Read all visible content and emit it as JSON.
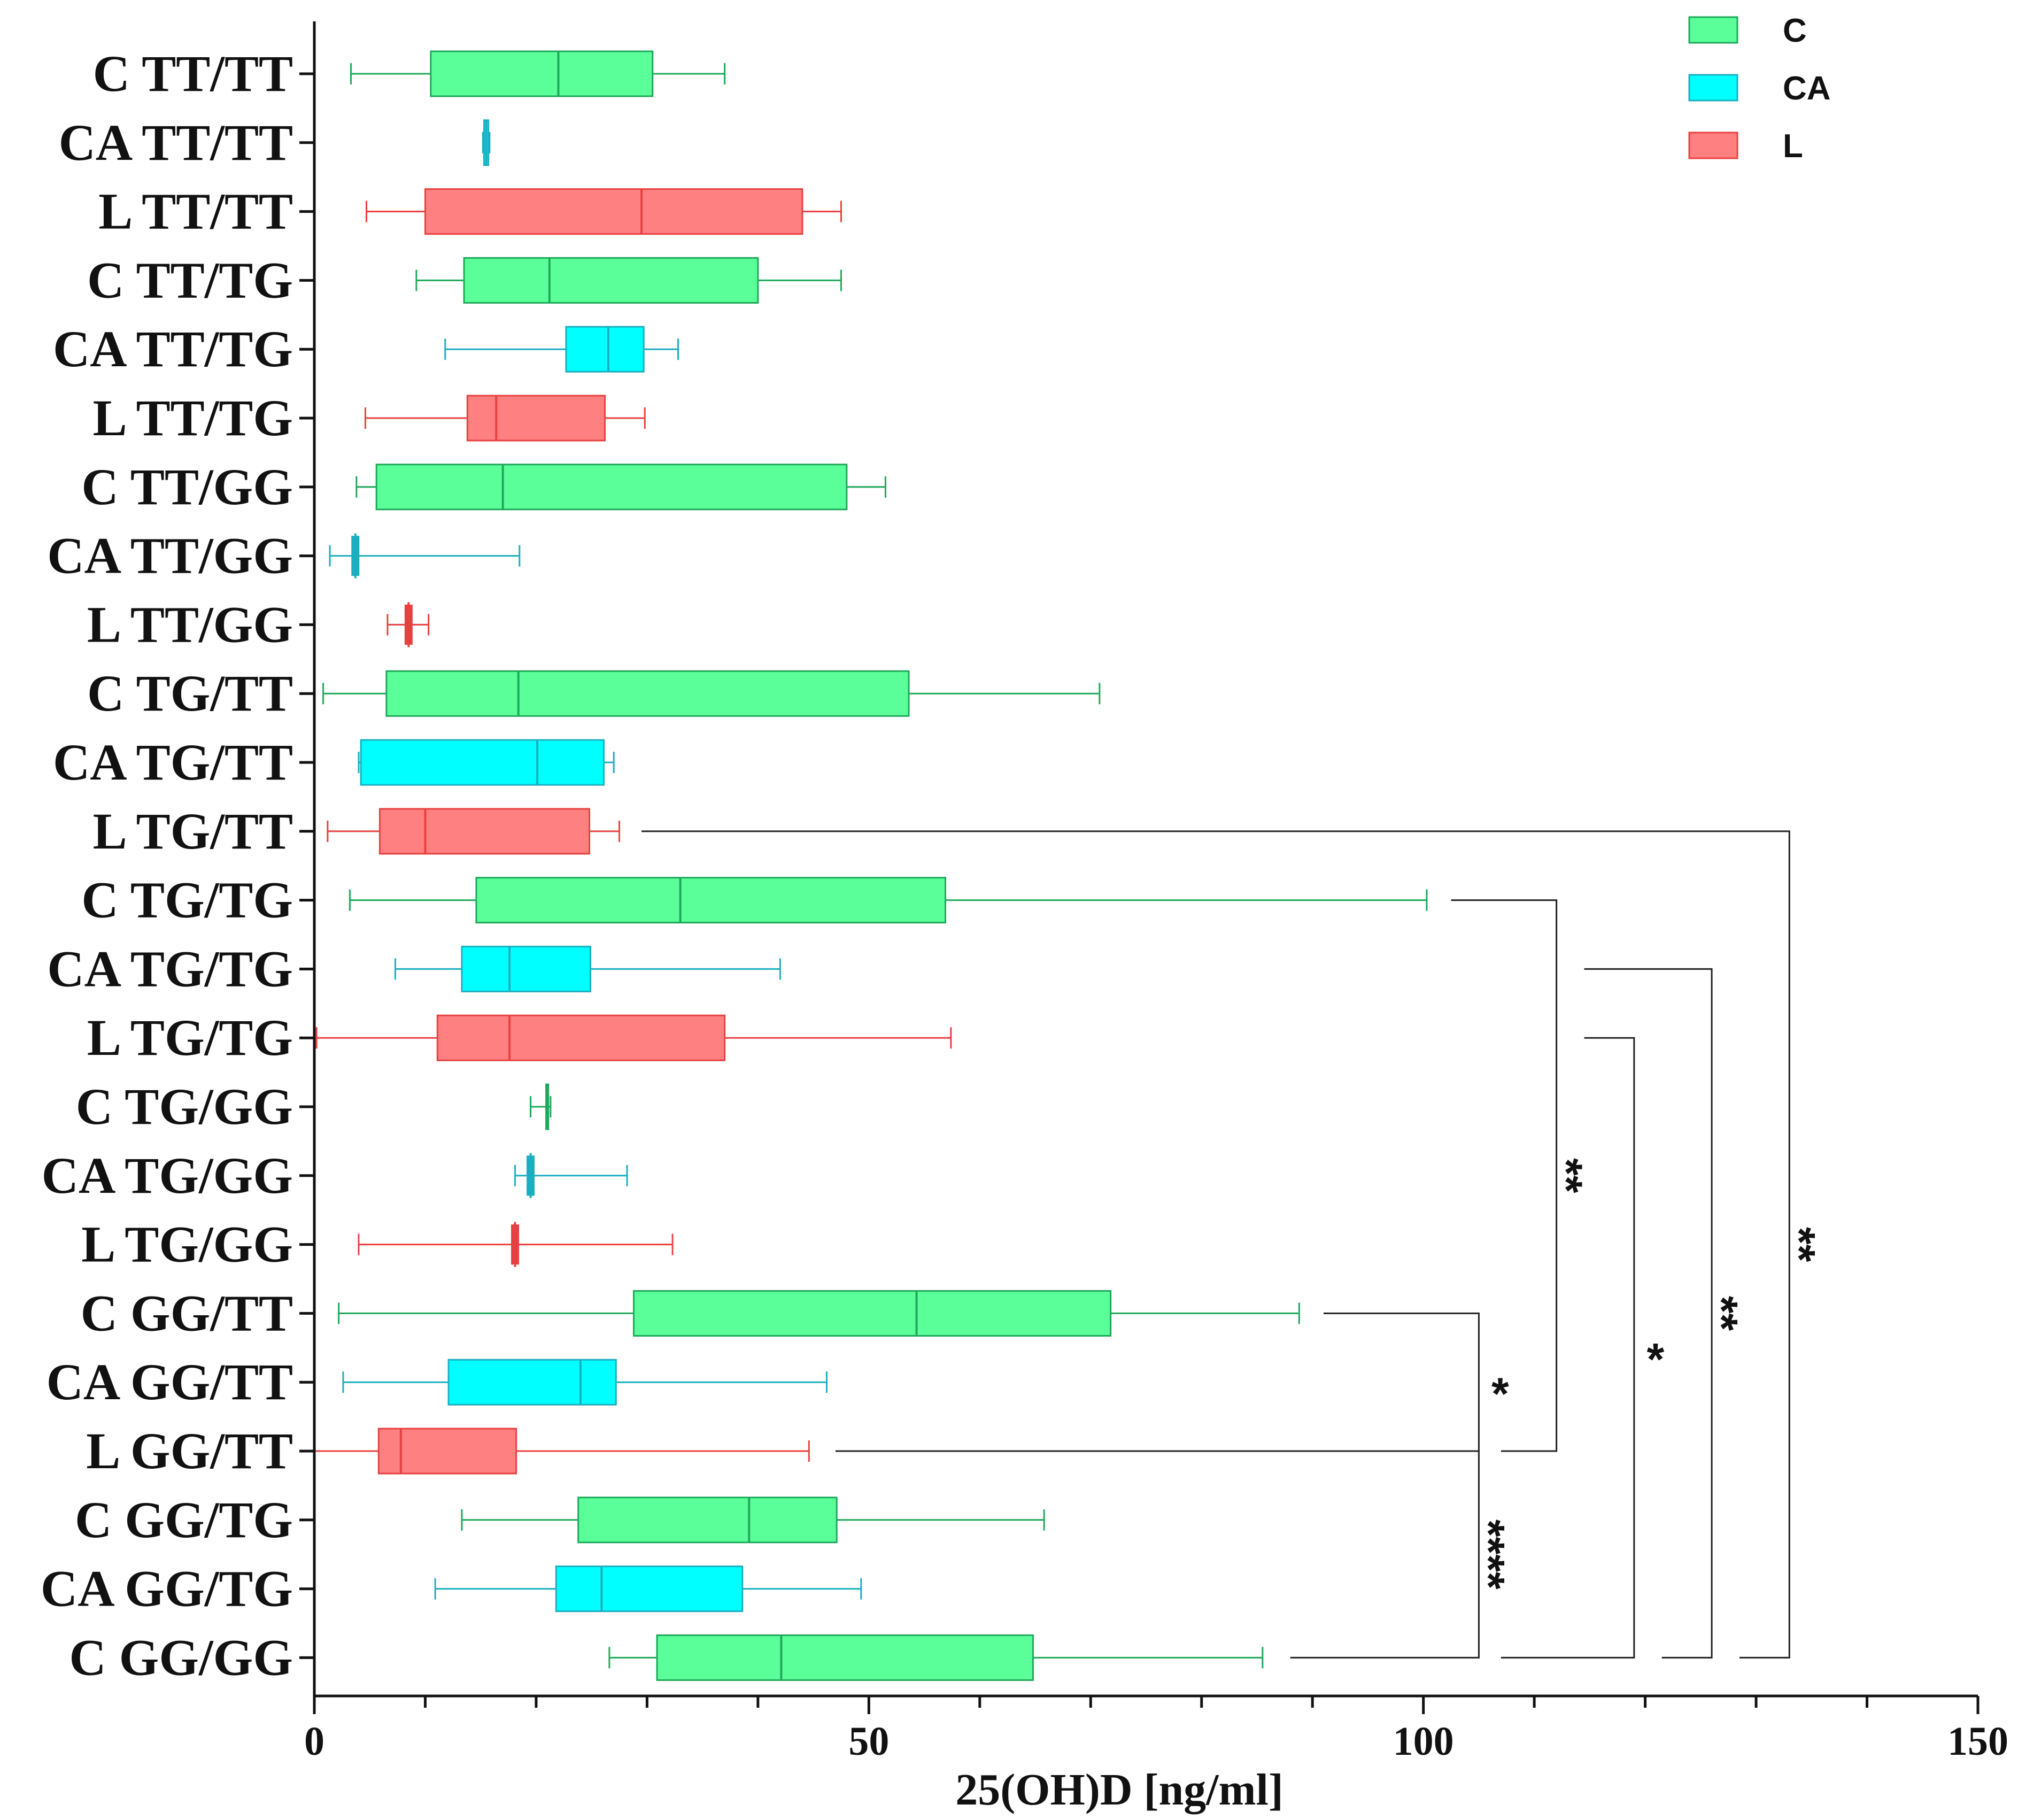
{
  "chart_data": {
    "type": "boxplot-horizontal",
    "xlabel": "25(OH)D [ng/ml]",
    "xlim": [
      0,
      150
    ],
    "xticks": [
      0,
      50,
      100,
      150
    ],
    "xtick_labels": [
      "0",
      "50",
      "100",
      "150"
    ],
    "minor_tick_step": 10,
    "legend": [
      {
        "key": "C",
        "label": "C",
        "fill": "#5BFF99",
        "stroke": "#1EA85A"
      },
      {
        "key": "CA",
        "label": "CA",
        "fill": "#00FFFF",
        "stroke": "#1AAFC0"
      },
      {
        "key": "L",
        "label": "L",
        "fill": "#FF8080",
        "stroke": "#E84040"
      }
    ],
    "groups": [
      {
        "label": "C TT/TT",
        "group": "C",
        "whisker_low": 3.3,
        "q1": 10.5,
        "median": 22.0,
        "q3": 30.5,
        "whisker_high": 37.0
      },
      {
        "label": "CA TT/TT",
        "group": "CA",
        "whisker_low": 15.2,
        "q1": 15.3,
        "median": 15.5,
        "q3": 15.7,
        "whisker_high": 15.8
      },
      {
        "label": "L TT/TT",
        "group": "L",
        "whisker_low": 4.7,
        "q1": 10.0,
        "median": 29.5,
        "q3": 44.0,
        "whisker_high": 47.5
      },
      {
        "label": "C TT/TG",
        "group": "C",
        "whisker_low": 9.2,
        "q1": 13.5,
        "median": 21.2,
        "q3": 40.0,
        "whisker_high": 47.5
      },
      {
        "label": "CA TT/TG",
        "group": "CA",
        "whisker_low": 11.8,
        "q1": 22.7,
        "median": 26.5,
        "q3": 29.7,
        "whisker_high": 32.8
      },
      {
        "label": "L TT/TG",
        "group": "L",
        "whisker_low": 4.6,
        "q1": 13.8,
        "median": 16.4,
        "q3": 26.2,
        "whisker_high": 29.8
      },
      {
        "label": "C TT/GG",
        "group": "C",
        "whisker_low": 3.8,
        "q1": 5.6,
        "median": 17.0,
        "q3": 48.0,
        "whisker_high": 51.5
      },
      {
        "label": "CA TT/GG",
        "group": "CA",
        "whisker_low": 1.4,
        "q1": 3.7,
        "median": 3.7,
        "q3": 3.7,
        "whisker_high": 18.5
      },
      {
        "label": "L TT/GG",
        "group": "L",
        "whisker_low": 6.6,
        "q1": 8.5,
        "median": 8.5,
        "q3": 8.5,
        "whisker_high": 10.3
      },
      {
        "label": "C TG/TT",
        "group": "C",
        "whisker_low": 0.8,
        "q1": 6.5,
        "median": 18.4,
        "q3": 53.6,
        "whisker_high": 70.8
      },
      {
        "label": "CA TG/TT",
        "group": "CA",
        "whisker_low": 4.0,
        "q1": 4.2,
        "median": 20.1,
        "q3": 26.1,
        "whisker_high": 27.0
      },
      {
        "label": "L TG/TT",
        "group": "L",
        "whisker_low": 1.2,
        "q1": 5.9,
        "median": 10.0,
        "q3": 24.8,
        "whisker_high": 27.5
      },
      {
        "label": "C TG/TG",
        "group": "C",
        "whisker_low": 3.2,
        "q1": 14.6,
        "median": 33.0,
        "q3": 56.9,
        "whisker_high": 100.3
      },
      {
        "label": "CA TG/TG",
        "group": "CA",
        "whisker_low": 7.3,
        "q1": 13.3,
        "median": 17.6,
        "q3": 24.9,
        "whisker_high": 42.0
      },
      {
        "label": "L TG/TG",
        "group": "L",
        "whisker_low": 0.2,
        "q1": 11.1,
        "median": 17.6,
        "q3": 37.0,
        "whisker_high": 57.4
      },
      {
        "label": "C TG/GG",
        "group": "C",
        "whisker_low": 19.5,
        "q1": 20.9,
        "median": 21.0,
        "q3": 21.1,
        "whisker_high": 21.3
      },
      {
        "label": "CA TG/GG",
        "group": "CA",
        "whisker_low": 18.1,
        "q1": 19.5,
        "median": 19.5,
        "q3": 19.5,
        "whisker_high": 28.2
      },
      {
        "label": "L TG/GG",
        "group": "L",
        "whisker_low": 4.0,
        "q1": 18.1,
        "median": 18.1,
        "q3": 18.1,
        "whisker_high": 32.3
      },
      {
        "label": "C GG/TT",
        "group": "C",
        "whisker_low": 2.2,
        "q1": 28.8,
        "median": 54.3,
        "q3": 71.8,
        "whisker_high": 88.8
      },
      {
        "label": "CA GG/TT",
        "group": "CA",
        "whisker_low": 2.6,
        "q1": 12.1,
        "median": 24.0,
        "q3": 27.2,
        "whisker_high": 46.2
      },
      {
        "label": "L GG/TT",
        "group": "L",
        "whisker_low": 0.0,
        "q1": 5.8,
        "median": 7.8,
        "q3": 18.2,
        "whisker_high": 44.6
      },
      {
        "label": "C GG/TG",
        "group": "C",
        "whisker_low": 13.3,
        "q1": 23.8,
        "median": 39.2,
        "q3": 47.1,
        "whisker_high": 65.8
      },
      {
        "label": "CA GG/TG",
        "group": "CA",
        "whisker_low": 10.9,
        "q1": 21.8,
        "median": 25.9,
        "q3": 38.6,
        "whisker_high": 49.3
      },
      {
        "label": "C GG/GG",
        "group": "C",
        "whisker_low": 26.6,
        "q1": 30.9,
        "median": 42.1,
        "q3": 64.8,
        "whisker_high": 85.5
      }
    ],
    "significance": [
      {
        "from": "L GG/TT",
        "to": "C GG/TT",
        "label": "*",
        "x_start_from": 47,
        "x_start_to": 91,
        "x_bracket": 105,
        "vertical_text": false
      },
      {
        "from": "L GG/TT",
        "to": "C GG/GG",
        "label": "****",
        "x_start_from": 47,
        "x_start_to": 88,
        "x_bracket": 105,
        "vertical_text": true
      },
      {
        "from": "C TG/TG",
        "to": "L GG/TT",
        "label": "**",
        "x_start_from": 102.5,
        "x_start_to": 107,
        "x_bracket": 112,
        "vertical_text": true
      },
      {
        "from": "L TG/TG",
        "to": "C GG/GG",
        "label": "*",
        "x_start_from": 114.5,
        "x_start_to": 107,
        "x_bracket": 119,
        "vertical_text": false
      },
      {
        "from": "CA TG/TG",
        "to": "C GG/GG",
        "label": "**",
        "x_start_from": 114.5,
        "x_start_to": 121.5,
        "x_bracket": 126,
        "vertical_text": true
      },
      {
        "from": "L TG/TT",
        "to": "C GG/GG",
        "label": "**",
        "x_start_from": 29.5,
        "x_start_to": 128.5,
        "x_bracket": 133,
        "vertical_text": true
      }
    ]
  }
}
